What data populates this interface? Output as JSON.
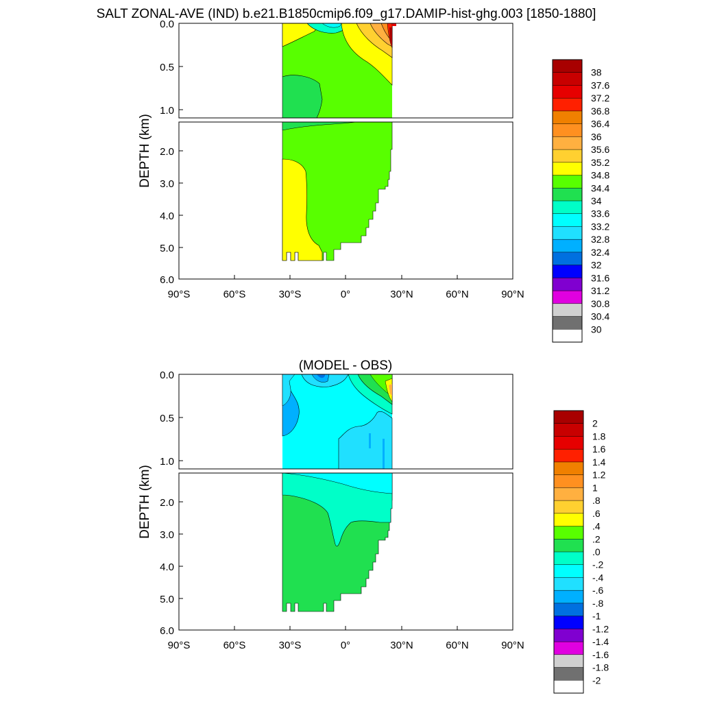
{
  "chart_data": [
    {
      "type": "heatmap",
      "title": "SALT ZONAL-AVE (IND) b.e21.B1850cmip6.f09_g17.DAMIP-hist-ghg.003 [1850-1880]",
      "xlabel": "",
      "ylabel": "DEPTH (km)",
      "x_ticks": [
        "90°S",
        "60°S",
        "30°S",
        "0°",
        "30°N",
        "60°N",
        "90°N"
      ],
      "y_ticks_upper": [
        "0.0",
        "0.5",
        "1.0"
      ],
      "y_ticks_lower": [
        "2.0",
        "3.0",
        "4.0",
        "5.0",
        "6.0"
      ],
      "xlim": [
        -90,
        90
      ],
      "ylim": [
        6.0,
        0.0
      ],
      "colorbar": {
        "labels": [
          "38",
          "37.6",
          "37.2",
          "36.8",
          "36.4",
          "36",
          "35.6",
          "35.2",
          "34.8",
          "34.4",
          "34",
          "33.6",
          "33.2",
          "32.8",
          "32.4",
          "32",
          "31.6",
          "31.2",
          "30.8",
          "30.4",
          "30"
        ],
        "colors": [
          "#a80000",
          "#c80000",
          "#e60000",
          "#ff2000",
          "#f08000",
          "#ff9020",
          "#ffb040",
          "#ffd030",
          "#ffff00",
          "#58ff00",
          "#20e050",
          "#00ffc8",
          "#00ffff",
          "#20e0ff",
          "#00b0ff",
          "#0070e0",
          "#0000ff",
          "#8000d0",
          "#e000e0",
          "#d0d0d0",
          "#707070",
          "#ffffff"
        ]
      },
      "regions": [
        {
          "name": "upper-green-34.4-34.8",
          "color": "#58ff00"
        },
        {
          "name": "yellow-34.8-35.2",
          "color": "#ffff00"
        },
        {
          "name": "orange-high-salinity",
          "color": "#ffb040"
        },
        {
          "name": "fresh-cyan-surface",
          "color": "#00ffc8"
        }
      ]
    },
    {
      "type": "heatmap",
      "title": "(MODEL - OBS)",
      "xlabel": "",
      "ylabel": "DEPTH (km)",
      "x_ticks": [
        "90°S",
        "60°S",
        "30°S",
        "0°",
        "30°N",
        "60°N",
        "90°N"
      ],
      "y_ticks_upper": [
        "0.0",
        "0.5",
        "1.0"
      ],
      "y_ticks_lower": [
        "2.0",
        "3.0",
        "4.0",
        "5.0",
        "6.0"
      ],
      "xlim": [
        -90,
        90
      ],
      "ylim": [
        6.0,
        0.0
      ],
      "colorbar": {
        "labels": [
          "2",
          "1.8",
          "1.6",
          "1.4",
          "1.2",
          "1",
          ".8",
          ".6",
          ".4",
          ".2",
          ".0",
          "-.2",
          "-.4",
          "-.6",
          "-.8",
          "-1",
          "-1.2",
          "-1.4",
          "-1.6",
          "-1.8",
          "-2"
        ],
        "colors": [
          "#a80000",
          "#c80000",
          "#e60000",
          "#ff2000",
          "#f08000",
          "#ff9020",
          "#ffb040",
          "#ffd030",
          "#ffff00",
          "#58ff00",
          "#20e050",
          "#00ffc8",
          "#00ffff",
          "#20e0ff",
          "#00b0ff",
          "#0070e0",
          "#0000ff",
          "#8000d0",
          "#e000e0",
          "#d0d0d0",
          "#707070",
          "#ffffff"
        ]
      },
      "regions": [
        {
          "name": "cyan-minus-0.4",
          "color": "#00ffff"
        },
        {
          "name": "light-blue-minus-0.6",
          "color": "#20e0ff"
        },
        {
          "name": "aquamarine-minus-0.2",
          "color": "#00ffc8"
        },
        {
          "name": "green-0.0",
          "color": "#20e050"
        }
      ]
    }
  ]
}
